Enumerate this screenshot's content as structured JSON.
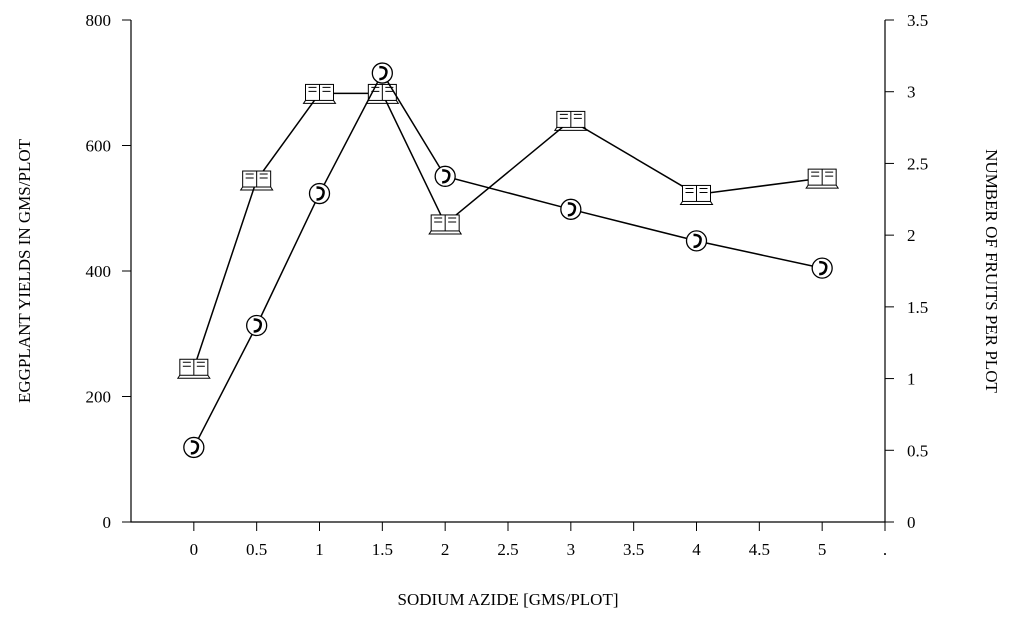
{
  "chart_data": {
    "type": "line",
    "x_label": "SODIUM AZIDE [GMS/PLOT]",
    "y_label": "EGGPLANT YIELDS IN GMS/PLOT",
    "y2_label": "NUMBER OF FRUITS PER PLOT",
    "x": [
      0,
      0.5,
      1,
      1.5,
      2,
      3,
      4,
      5
    ],
    "xlim": [
      -0.5,
      5.5
    ],
    "xticks": [
      0,
      0.5,
      1,
      1.5,
      2,
      2.5,
      3,
      3.5,
      4,
      4.5,
      5,
      {
        "value": 5.5,
        "label": "."
      }
    ],
    "ylim": [
      0,
      800
    ],
    "yticks": [
      0,
      200,
      400,
      600,
      800
    ],
    "y2lim": [
      0,
      3.5
    ],
    "y2ticks": [
      0,
      0.5,
      1,
      1.5,
      2,
      2.5,
      3,
      3.5
    ],
    "series": [
      {
        "color": "#000000",
        "marker": "book",
        "values": [
          245,
          545,
          683,
          683,
          475,
          640,
          522,
          548
        ]
      },
      {
        "color": "#000000",
        "marker": "phone",
        "axis": "y2",
        "values": [
          0.52,
          1.37,
          2.29,
          3.13,
          2.41,
          2.18,
          1.96,
          1.77
        ]
      }
    ]
  }
}
